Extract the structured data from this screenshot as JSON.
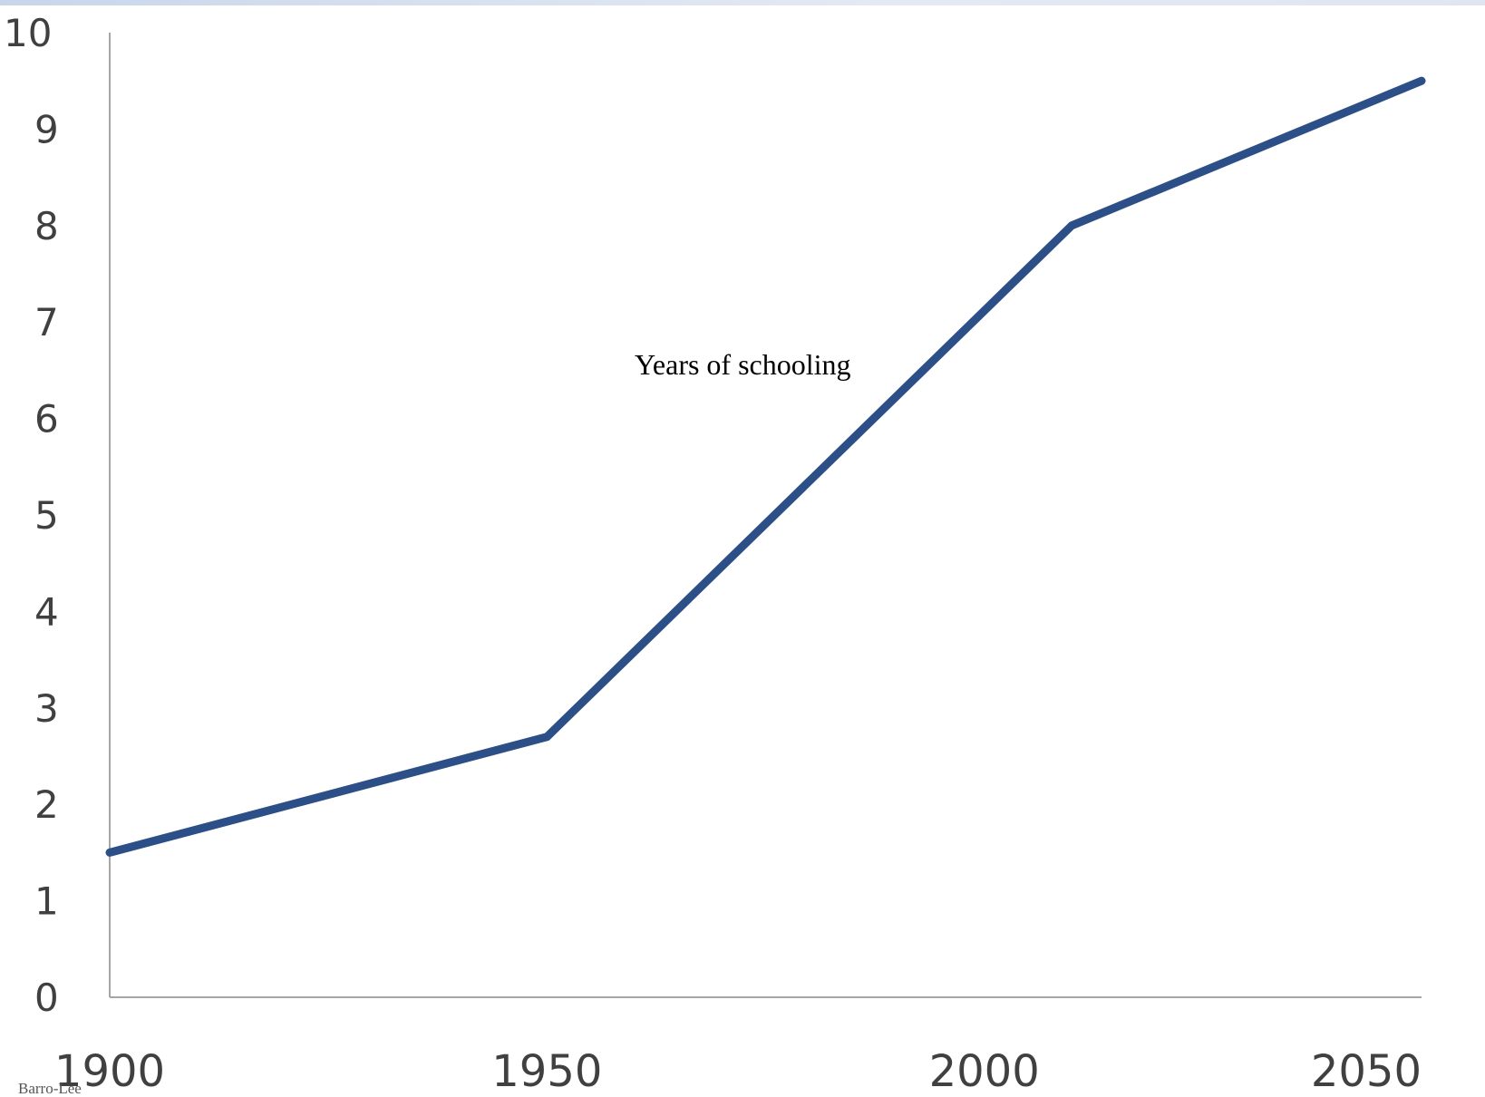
{
  "chart_data": {
    "type": "line",
    "title": "",
    "xlabel": "",
    "ylabel": "",
    "x": [
      1900,
      1950,
      2010,
      2050
    ],
    "series": [
      {
        "name": "Years of schooling",
        "values": [
          1.5,
          2.7,
          8.0,
          9.5
        ],
        "color": "#2b4f86"
      }
    ],
    "xticks": [
      1900,
      1950,
      2000,
      2050
    ],
    "yticks": [
      0,
      1,
      2,
      3,
      4,
      5,
      6,
      7,
      8,
      9,
      10
    ],
    "xlim": [
      1900,
      2050
    ],
    "ylim": [
      0,
      10
    ],
    "grid": false,
    "legend": "none",
    "axis_color": "#a6a6a6",
    "tick_label_color": "#404040"
  },
  "source_note": "Barro-Lee"
}
